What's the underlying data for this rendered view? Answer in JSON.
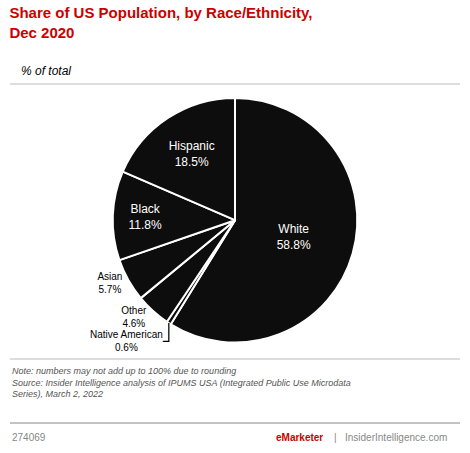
{
  "chart_data": {
    "type": "pie",
    "title": "Share of US Population, by Race/Ethnicity,\nDec 2020",
    "subtitle": "% of total",
    "categories": [
      "White",
      "Native American",
      "Other",
      "Asian",
      "Black",
      "Hispanic"
    ],
    "values": [
      58.8,
      0.6,
      4.6,
      5.7,
      11.8,
      18.5
    ],
    "value_labels": [
      "58.8%",
      "0.6%",
      "4.6%",
      "5.7%",
      "11.8%",
      "18.5%"
    ],
    "data_labels": true,
    "color": "#0d0d0d",
    "annotations": [
      "Note: numbers may not add up to 100% due to rounding\nSource: Insider Intelligence analysis of IPUMS USA (Integrated Public Use Microdata\nSeries), March 2, 2022",
      "274069",
      "eMarketer",
      "|",
      "InsiderIntelligence.com"
    ]
  }
}
